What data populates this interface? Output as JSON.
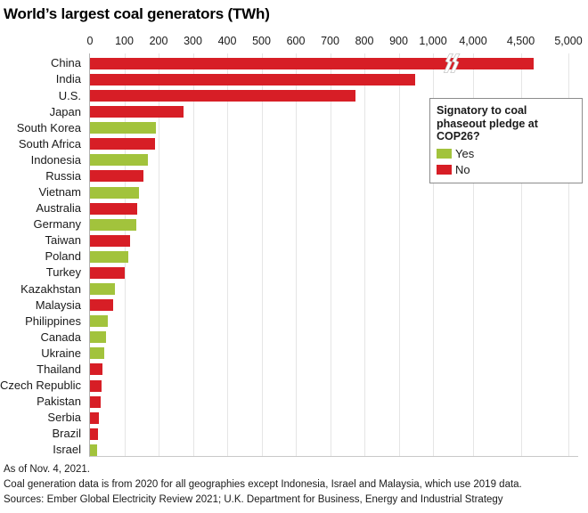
{
  "title": "World’s largest coal generators (TWh)",
  "legend": {
    "title_line1": "Signatory to coal",
    "title_line2": "phaseout pledge at COP26?",
    "yes_label": "Yes",
    "no_label": "No"
  },
  "colors": {
    "yes": "#a2c33c",
    "no": "#d71e26",
    "gridline": "#e5e5e5",
    "axis_line": "#b3b3b3",
    "text": "#1a1a1a"
  },
  "footer": {
    "line1": "As of Nov. 4, 2021.",
    "line2": "Coal generation data is from 2020 for all geographies except Indonesia, Israel and Malaysia, which use 2019 data.",
    "line3": "Sources: Ember Global Electricity Review 2021; U.K. Department for Business, Energy and Industrial Strategy"
  },
  "chart_data": {
    "type": "bar",
    "orientation": "horizontal",
    "title": "World’s largest coal generators (TWh)",
    "unit": "TWh",
    "legend_title": "Signatory to coal phaseout pledge at COP26?",
    "legend_position": "upper-right-inside",
    "grid": true,
    "x_axis": {
      "tick_labels": [
        "0",
        "100",
        "200",
        "300",
        "400",
        "500",
        "600",
        "700",
        "800",
        "900",
        "1,000",
        "4,000",
        "4,500",
        "5,000"
      ],
      "tick_values": [
        0,
        100,
        200,
        300,
        400,
        500,
        600,
        700,
        800,
        900,
        1000,
        4000,
        4500,
        5000
      ],
      "axis_break_between": [
        1000,
        4000
      ]
    },
    "rows": [
      {
        "country": "China",
        "value": 4631,
        "signatory": "No"
      },
      {
        "country": "India",
        "value": 947,
        "signatory": "No"
      },
      {
        "country": "U.S.",
        "value": 774,
        "signatory": "No"
      },
      {
        "country": "Japan",
        "value": 274,
        "signatory": "No"
      },
      {
        "country": "South Korea",
        "value": 192,
        "signatory": "Yes"
      },
      {
        "country": "South Africa",
        "value": 190,
        "signatory": "No"
      },
      {
        "country": "Indonesia",
        "value": 170,
        "signatory": "Yes"
      },
      {
        "country": "Russia",
        "value": 157,
        "signatory": "No"
      },
      {
        "country": "Vietnam",
        "value": 142,
        "signatory": "Yes"
      },
      {
        "country": "Australia",
        "value": 138,
        "signatory": "No"
      },
      {
        "country": "Germany",
        "value": 135,
        "signatory": "Yes"
      },
      {
        "country": "Taiwan",
        "value": 118,
        "signatory": "No"
      },
      {
        "country": "Poland",
        "value": 112,
        "signatory": "Yes"
      },
      {
        "country": "Turkey",
        "value": 100,
        "signatory": "No"
      },
      {
        "country": "Kazakhstan",
        "value": 73,
        "signatory": "Yes"
      },
      {
        "country": "Malaysia",
        "value": 67,
        "signatory": "No"
      },
      {
        "country": "Philippines",
        "value": 52,
        "signatory": "Yes"
      },
      {
        "country": "Canada",
        "value": 47,
        "signatory": "Yes"
      },
      {
        "country": "Ukraine",
        "value": 41,
        "signatory": "Yes"
      },
      {
        "country": "Thailand",
        "value": 37,
        "signatory": "No"
      },
      {
        "country": "Czech Republic",
        "value": 34,
        "signatory": "No"
      },
      {
        "country": "Pakistan",
        "value": 31,
        "signatory": "No"
      },
      {
        "country": "Serbia",
        "value": 25,
        "signatory": "No"
      },
      {
        "country": "Brazil",
        "value": 23,
        "signatory": "No"
      },
      {
        "country": "Israel",
        "value": 22,
        "signatory": "Yes"
      }
    ]
  }
}
